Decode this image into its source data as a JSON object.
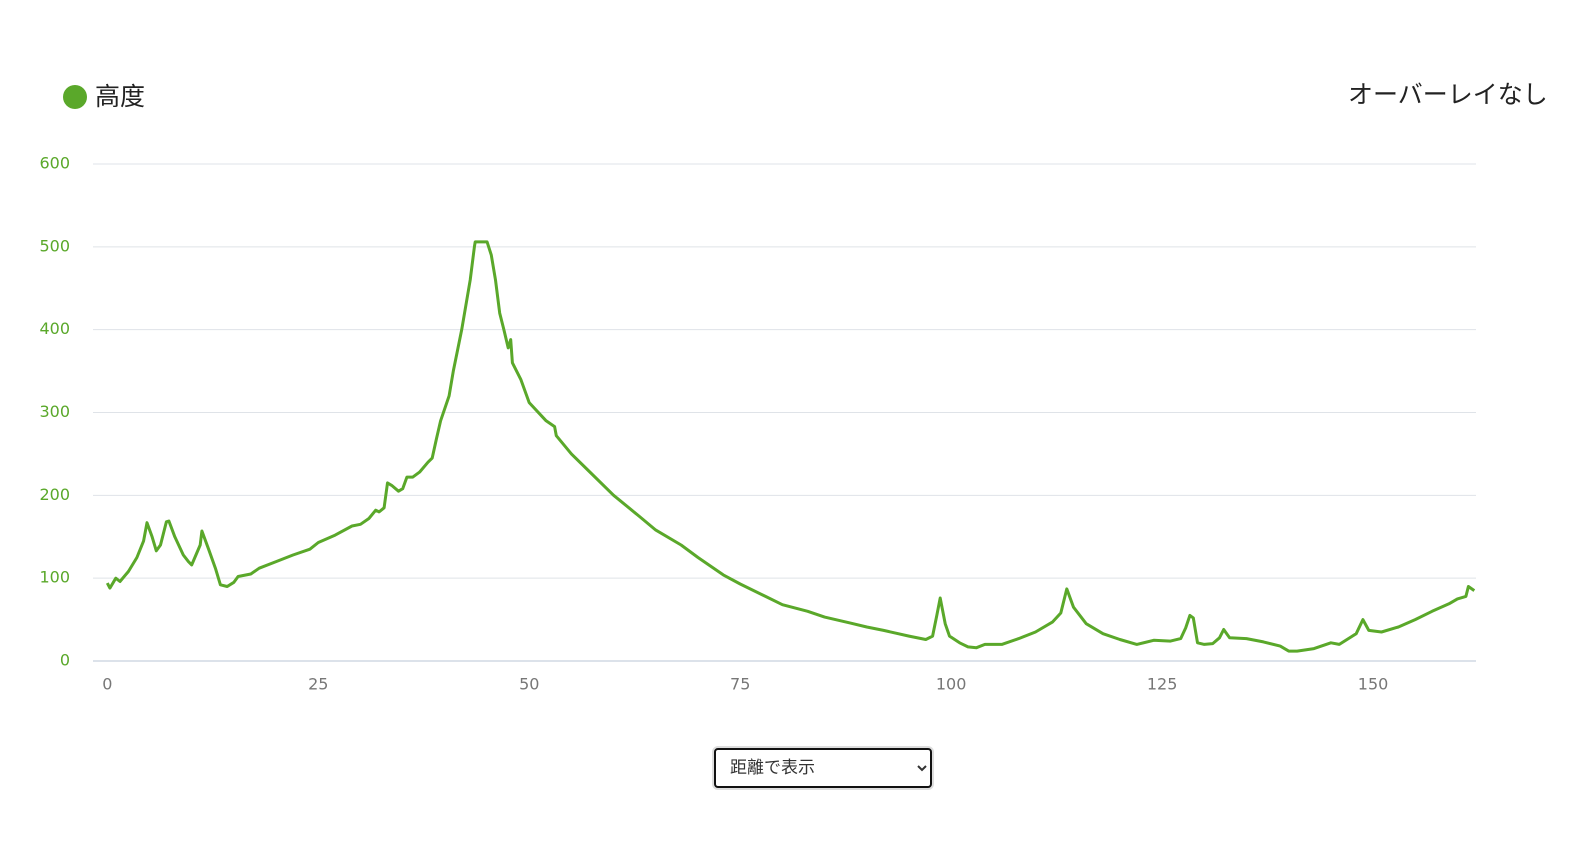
{
  "chart_data": {
    "type": "line",
    "legend_label": "高度",
    "overlay_label": "オーバーレイなし",
    "select_option": "距離で表示",
    "x": [
      0,
      0.3,
      1,
      1.5,
      2.5,
      3.5,
      4.3,
      4.7,
      5.3,
      5.8,
      6.3,
      7,
      7.3,
      8,
      9,
      9.6,
      10,
      11,
      11.2,
      12,
      12.8,
      13.4,
      14.2,
      15,
      15.5,
      17,
      18,
      20,
      22,
      24,
      25,
      27,
      29,
      30,
      31,
      31.8,
      32.2,
      32.8,
      33.2,
      33.7,
      34.5,
      35,
      35.5,
      36.2,
      37,
      38,
      38.5,
      39,
      39.5,
      40.5,
      41,
      41.5,
      42,
      43,
      43.5,
      43.6,
      45,
      45.5,
      46,
      46.5,
      47,
      47.5,
      47.8,
      48,
      49,
      50,
      52,
      53,
      53.2,
      55,
      57,
      60,
      63,
      65,
      68,
      70,
      73,
      75,
      78,
      80,
      83,
      85,
      88,
      90,
      92,
      95,
      97,
      97.8,
      98.3,
      98.7,
      99.3,
      99.8,
      101,
      102,
      103,
      104,
      106,
      108,
      110,
      112,
      113,
      113.7,
      114.5,
      116,
      118,
      120,
      122,
      124,
      126,
      127.2,
      127.8,
      128.3,
      128.7,
      129.2,
      130,
      131,
      131.8,
      132.3,
      133,
      135,
      137,
      139,
      140,
      141,
      143,
      145,
      146,
      148,
      148.8,
      149.5,
      151,
      153,
      155,
      157,
      159,
      160,
      161,
      161.3,
      162
    ],
    "series": [
      {
        "name": "高度",
        "color": "#5aa82a",
        "values": [
          94,
          88,
          100,
          96,
          108,
          125,
          145,
          167,
          150,
          133,
          140,
          168,
          169,
          150,
          128,
          120,
          116,
          140,
          157,
          135,
          112,
          92,
          90,
          95,
          102,
          105,
          112,
          120,
          128,
          135,
          143,
          152,
          163,
          165,
          172,
          182,
          180,
          185,
          215,
          212,
          205,
          208,
          222,
          222,
          228,
          240,
          245,
          268,
          290,
          320,
          350,
          375,
          400,
          460,
          500,
          506,
          506,
          490,
          460,
          420,
          400,
          378,
          388,
          360,
          340,
          312,
          290,
          283,
          272,
          250,
          230,
          200,
          175,
          158,
          140,
          125,
          104,
          93,
          78,
          68,
          60,
          53,
          46,
          41,
          37,
          30,
          26,
          30,
          55,
          76,
          45,
          30,
          22,
          17,
          16,
          20,
          20,
          27,
          35,
          47,
          58,
          87,
          65,
          45,
          33,
          26,
          20,
          25,
          24,
          27,
          40,
          55,
          52,
          22,
          20,
          21,
          28,
          38,
          28,
          27,
          23,
          18,
          12,
          12,
          15,
          22,
          20,
          33,
          50,
          37,
          35,
          41,
          50,
          60,
          69,
          75,
          78,
          90,
          85
        ]
      }
    ],
    "xlim": [
      -1.7,
      162.2
    ],
    "ylim": [
      0,
      600
    ],
    "xticks": [
      0,
      25,
      50,
      75,
      100,
      125,
      150
    ],
    "yticks": [
      0,
      100,
      200,
      300,
      400,
      500,
      600
    ],
    "grid": true
  }
}
